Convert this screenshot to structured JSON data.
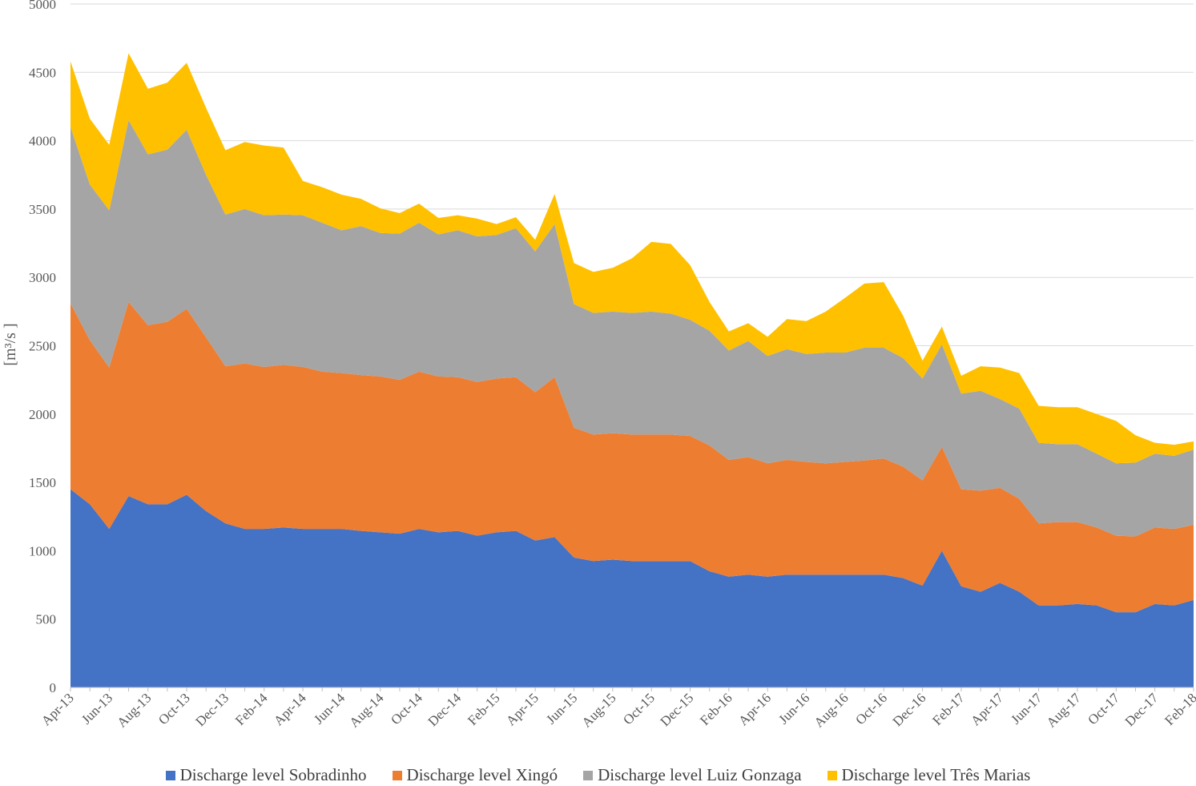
{
  "chart_data": {
    "type": "area",
    "stacked": true,
    "title": "",
    "xlabel": "",
    "ylabel": "[m³/s ]",
    "ylim": [
      0,
      5000
    ],
    "yticks": [
      0,
      500,
      1000,
      1500,
      2000,
      2500,
      3000,
      3500,
      4000,
      4500,
      5000
    ],
    "grid": true,
    "legend_position": "bottom",
    "x": [
      "Apr-13",
      "May-13",
      "Jun-13",
      "Jul-13",
      "Aug-13",
      "Sep-13",
      "Oct-13",
      "Nov-13",
      "Dec-13",
      "Jan-14",
      "Feb-14",
      "Mar-14",
      "Apr-14",
      "May-14",
      "Jun-14",
      "Jul-14",
      "Aug-14",
      "Sep-14",
      "Oct-14",
      "Nov-14",
      "Dec-14",
      "Jan-15",
      "Feb-15",
      "Mar-15",
      "Apr-15",
      "May-15",
      "Jun-15",
      "Jul-15",
      "Aug-15",
      "Sep-15",
      "Oct-15",
      "Nov-15",
      "Dec-15",
      "Jan-16",
      "Feb-16",
      "Mar-16",
      "Apr-16",
      "May-16",
      "Jun-16",
      "Jul-16",
      "Aug-16",
      "Sep-16",
      "Oct-16",
      "Nov-16",
      "Dec-16",
      "Jan-17",
      "Feb-17",
      "Mar-17",
      "Apr-17",
      "May-17",
      "Jun-17",
      "Jul-17",
      "Aug-17",
      "Sep-17",
      "Oct-17",
      "Nov-17",
      "Dec-17",
      "Jan-18",
      "Feb-18"
    ],
    "tick_labels": [
      "Apr-13",
      "Jun-13",
      "Aug-13",
      "Oct-13",
      "Dec-13",
      "Feb-14",
      "Apr-14",
      "Jun-14",
      "Aug-14",
      "Oct-14",
      "Dec-14",
      "Feb-15",
      "Apr-15",
      "Jun-15",
      "Aug-15",
      "Oct-15",
      "Dec-15",
      "Feb-16",
      "Apr-16",
      "Jun-16",
      "Aug-16",
      "Oct-16",
      "Dec-16",
      "Feb-17",
      "Apr-17",
      "Jun-17",
      "Aug-17",
      "Oct-17",
      "Dec-17",
      "Feb-18"
    ],
    "series": [
      {
        "name": "Discharge level Sobradinho",
        "color": "#4472C4",
        "values": [
          1450,
          1340,
          1160,
          1400,
          1340,
          1340,
          1410,
          1290,
          1200,
          1160,
          1160,
          1170,
          1160,
          1160,
          1160,
          1145,
          1135,
          1125,
          1160,
          1135,
          1145,
          1110,
          1135,
          1145,
          1075,
          1100,
          950,
          925,
          935,
          925,
          925,
          925,
          925,
          850,
          810,
          825,
          810,
          825,
          825,
          825,
          825,
          825,
          825,
          800,
          745,
          1000,
          740,
          700,
          765,
          700,
          600,
          600,
          610,
          600,
          550,
          550,
          610,
          600,
          640
        ]
      },
      {
        "name": "Discharge level Xingó",
        "color": "#ED7D31",
        "values": [
          1360,
          1200,
          1180,
          1420,
          1310,
          1335,
          1360,
          1270,
          1150,
          1210,
          1185,
          1190,
          1185,
          1150,
          1140,
          1140,
          1140,
          1125,
          1150,
          1140,
          1125,
          1125,
          1125,
          1125,
          1085,
          1170,
          950,
          925,
          925,
          925,
          925,
          925,
          915,
          920,
          855,
          860,
          830,
          840,
          825,
          815,
          825,
          835,
          850,
          815,
          770,
          760,
          710,
          740,
          695,
          680,
          600,
          610,
          600,
          570,
          560,
          555,
          560,
          560,
          550
        ]
      },
      {
        "name": "Discharge level Luiz Gonzaga",
        "color": "#A5A5A5",
        "values": [
          1290,
          1140,
          1150,
          1330,
          1250,
          1260,
          1310,
          1190,
          1110,
          1130,
          1110,
          1100,
          1110,
          1090,
          1045,
          1090,
          1050,
          1070,
          1090,
          1040,
          1075,
          1065,
          1050,
          1090,
          1030,
          1120,
          905,
          890,
          890,
          890,
          900,
          885,
          850,
          840,
          800,
          850,
          785,
          810,
          790,
          810,
          800,
          825,
          810,
          795,
          745,
          750,
          700,
          730,
          650,
          660,
          590,
          570,
          570,
          540,
          530,
          540,
          540,
          535,
          550
        ]
      },
      {
        "name": "Discharge level Três Marias",
        "color": "#FFC000",
        "values": [
          480,
          480,
          480,
          490,
          480,
          490,
          490,
          490,
          470,
          490,
          510,
          490,
          250,
          260,
          260,
          200,
          180,
          150,
          140,
          120,
          110,
          130,
          80,
          80,
          85,
          220,
          300,
          300,
          320,
          400,
          510,
          510,
          400,
          210,
          140,
          130,
          140,
          220,
          240,
          300,
          400,
          470,
          480,
          310,
          130,
          130,
          130,
          180,
          230,
          260,
          270,
          270,
          270,
          290,
          310,
          200,
          80,
          80,
          60
        ]
      }
    ]
  }
}
